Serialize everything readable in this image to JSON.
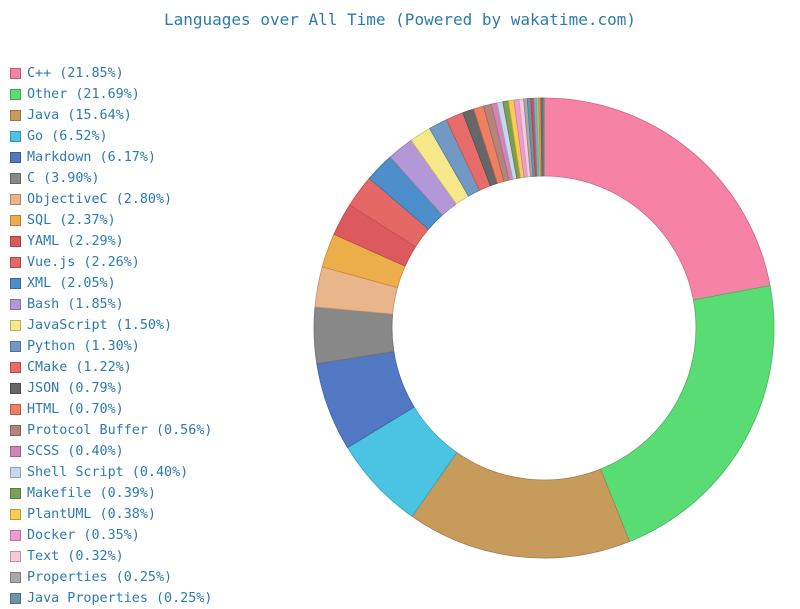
{
  "chart_data": {
    "type": "pie",
    "title": "Languages over All Time (Powered by wakatime.com)",
    "legend_position": "left",
    "slices": [
      {
        "label": "C++ (21.85%)",
        "value": 21.85,
        "color": "#f682a5"
      },
      {
        "label": "Other (21.69%)",
        "value": 21.69,
        "color": "#5adc75"
      },
      {
        "label": "Java (15.64%)",
        "value": 15.64,
        "color": "#c79b5c"
      },
      {
        "label": "Go (6.52%)",
        "value": 6.52,
        "color": "#4ac4e2"
      },
      {
        "label": "Markdown (6.17%)",
        "value": 6.17,
        "color": "#5178c3"
      },
      {
        "label": "C (3.90%)",
        "value": 3.9,
        "color": "#888888"
      },
      {
        "label": "ObjectiveC (2.80%)",
        "value": 2.8,
        "color": "#e9b58a"
      },
      {
        "label": "SQL (2.37%)",
        "value": 2.37,
        "color": "#ecae4b"
      },
      {
        "label": "YAML (2.29%)",
        "value": 2.29,
        "color": "#dc5a5e"
      },
      {
        "label": "Vue.js (2.26%)",
        "value": 2.26,
        "color": "#e66866"
      },
      {
        "label": "XML (2.05%)",
        "value": 2.05,
        "color": "#4b8ec9"
      },
      {
        "label": "Bash (1.85%)",
        "value": 1.85,
        "color": "#b497d6"
      },
      {
        "label": "JavaScript (1.50%)",
        "value": 1.5,
        "color": "#f7e98a"
      },
      {
        "label": "Python (1.30%)",
        "value": 1.3,
        "color": "#7299c4"
      },
      {
        "label": "CMake (1.22%)",
        "value": 1.22,
        "color": "#e66b6b"
      },
      {
        "label": "JSON (0.79%)",
        "value": 0.79,
        "color": "#666666"
      },
      {
        "label": "HTML (0.70%)",
        "value": 0.7,
        "color": "#f07f62"
      },
      {
        "label": "Protocol Buffer (0.56%)",
        "value": 0.56,
        "color": "#b5837a"
      },
      {
        "label": "SCSS (0.40%)",
        "value": 0.4,
        "color": "#d583b5"
      },
      {
        "label": "Shell Script (0.40%)",
        "value": 0.4,
        "color": "#c6d7ef"
      },
      {
        "label": "Makefile (0.39%)",
        "value": 0.39,
        "color": "#7c9f54"
      },
      {
        "label": "PlantUML (0.38%)",
        "value": 0.38,
        "color": "#fbcd4e"
      },
      {
        "label": "Docker (0.35%)",
        "value": 0.35,
        "color": "#f09cd0"
      },
      {
        "label": "Text (0.32%)",
        "value": 0.32,
        "color": "#f8c8dd"
      },
      {
        "label": "Properties (0.25%)",
        "value": 0.25,
        "color": "#a8a8a8"
      },
      {
        "label": "Java Properties (0.25%)",
        "value": 0.25,
        "color": "#6a94a8"
      },
      {
        "value": 0.2,
        "color": "#d94f4f"
      },
      {
        "value": 0.18,
        "color": "#7ab0d8"
      },
      {
        "value": 0.16,
        "color": "#9ad48a"
      },
      {
        "value": 0.14,
        "color": "#e0a060"
      },
      {
        "value": 0.12,
        "color": "#c05050"
      },
      {
        "value": 0.1,
        "color": "#4fa0a0"
      }
    ]
  }
}
